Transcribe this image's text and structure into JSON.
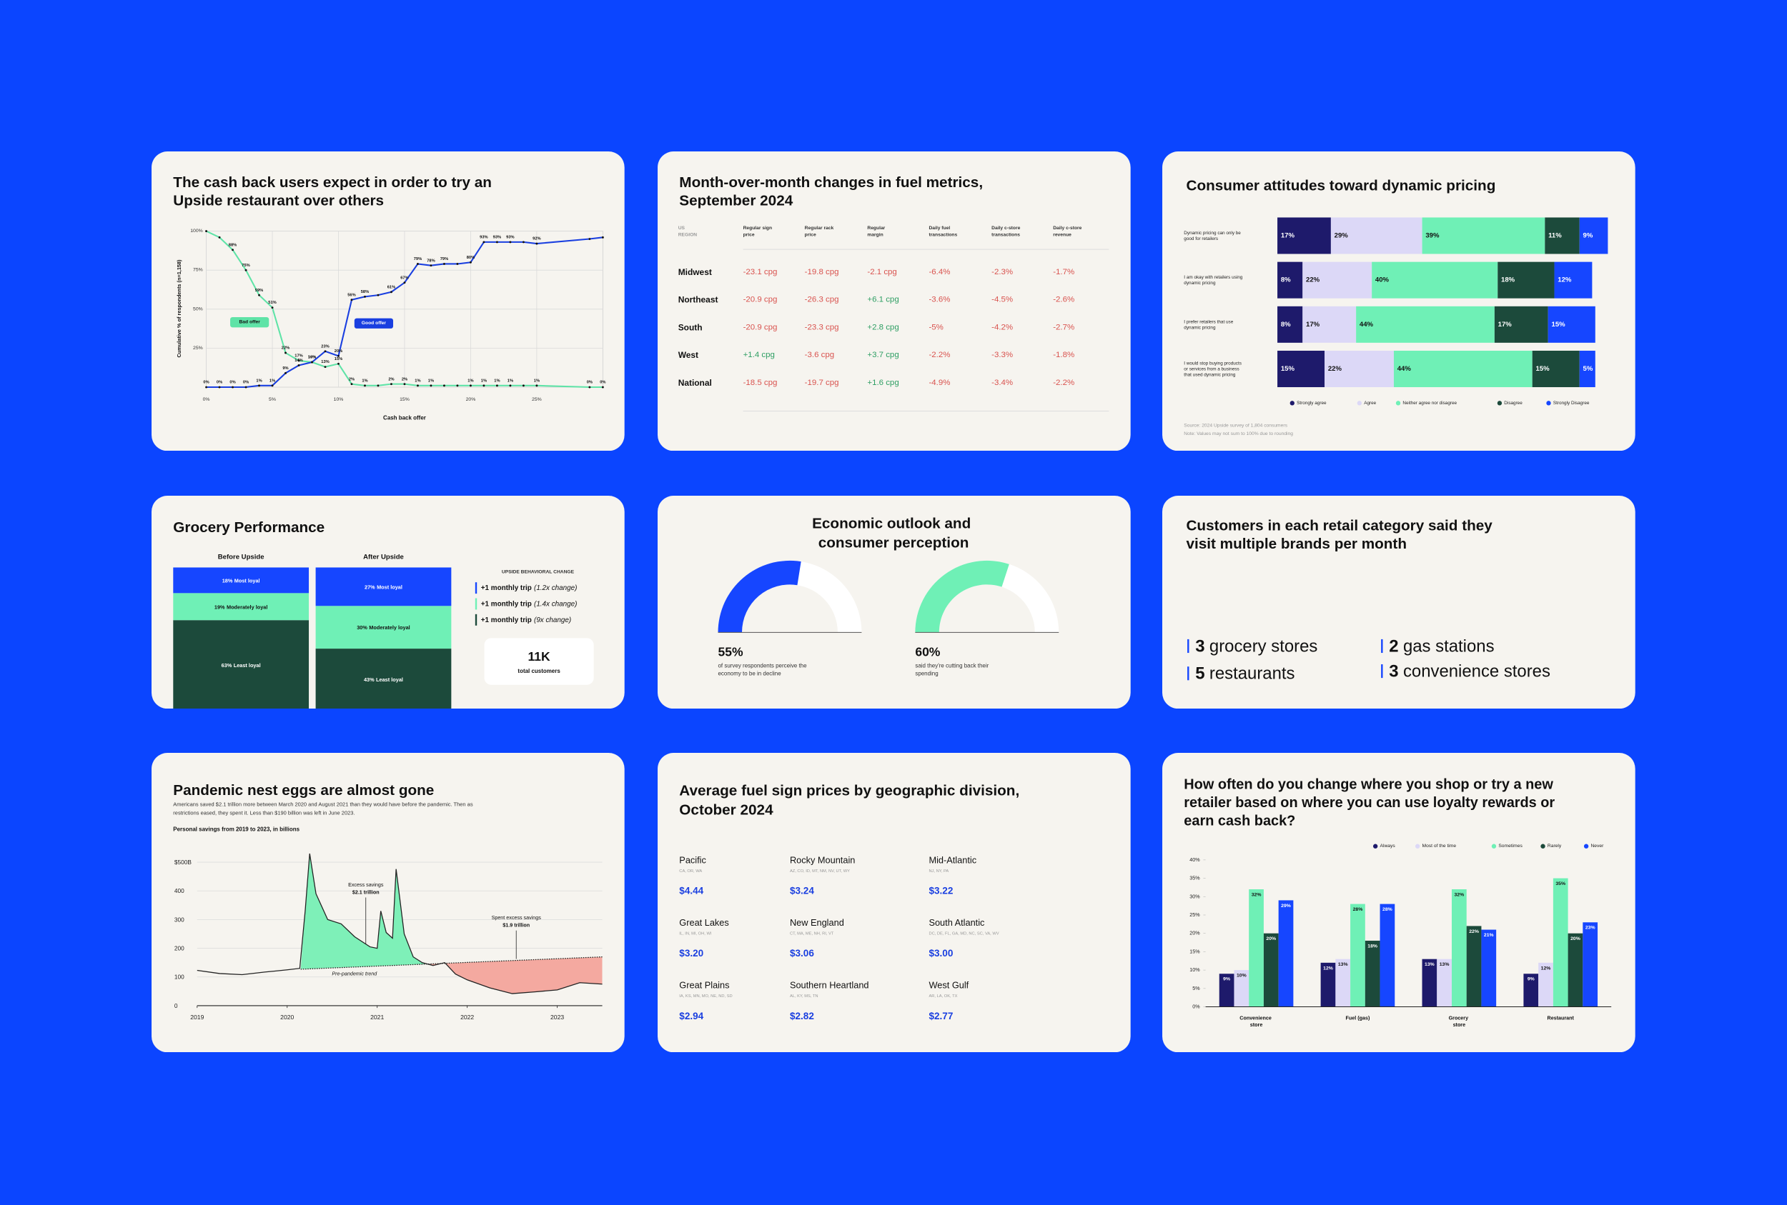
{
  "chart_data": [
    {
      "type": "line",
      "title": "The cash back users expect in order to try an Upside restaurant over others",
      "x_label": "Cash back offer",
      "y_label": "Cumulative % of respondents (n=1,158)",
      "x": [
        0,
        1,
        2,
        3,
        4,
        5,
        6,
        7,
        8,
        9,
        10,
        11,
        12,
        13,
        14,
        15,
        16,
        17,
        18,
        19,
        20,
        21,
        22,
        23,
        24,
        25,
        29,
        30
      ],
      "xlim": [
        0,
        30
      ],
      "xticks": [
        {
          "value": 0,
          "label": "0%"
        },
        {
          "value": 5,
          "label": "5%"
        },
        {
          "value": 10,
          "label": "10%"
        },
        {
          "value": 15,
          "label": "15%"
        },
        {
          "value": 20,
          "label": "20%"
        },
        {
          "value": 25,
          "label": "25%"
        }
      ],
      "ylim": [
        0,
        100
      ],
      "yticks": [
        {
          "value": 25,
          "label": "25%"
        },
        {
          "value": 50,
          "label": "50%"
        },
        {
          "value": 75,
          "label": "75%"
        },
        {
          "value": 100,
          "label": "100%"
        }
      ],
      "grid": true,
      "series": [
        {
          "name": "Bad offer",
          "color": "#5fe3a7",
          "values": [
            100,
            96,
            88,
            75,
            59,
            51,
            22,
            17,
            16,
            13,
            15,
            2,
            1,
            1,
            2,
            2,
            1,
            1,
            1,
            1,
            1,
            1,
            1,
            1,
            1,
            1,
            0,
            0
          ],
          "value_labels": [
            null,
            null,
            "88%",
            "75%",
            "59%",
            "51%",
            "22%",
            "17%",
            "16%",
            "13%",
            "15%",
            "2%",
            "1%",
            null,
            "2%",
            "2%",
            "1%",
            "1%",
            null,
            null,
            "1%",
            "1%",
            "1%",
            "1%",
            null,
            "1%",
            "0%",
            "0%"
          ]
        },
        {
          "name": "Good offer",
          "color": "#1a3fe0",
          "values": [
            0,
            0,
            0,
            0,
            1,
            1,
            9,
            14,
            16,
            23,
            20,
            56,
            58,
            59,
            61,
            67,
            79,
            78,
            79,
            79,
            80,
            93,
            93,
            93,
            93,
            92,
            95,
            96
          ],
          "value_labels": [
            "0%",
            "0%",
            "0%",
            "0%",
            "1%",
            "1%",
            "9%",
            "14%",
            "16%",
            "23%",
            "20%",
            "56%",
            "58%",
            null,
            "61%",
            "67%",
            "79%",
            "78%",
            "79%",
            null,
            "80%",
            "93%",
            "93%",
            "93%",
            null,
            "92%",
            null,
            null
          ]
        }
      ]
    },
    {
      "type": "table",
      "title": "Month-over-month changes in fuel metrics, September 2024",
      "columns": [
        "US REGION",
        "Regular sign price",
        "Regular rack price",
        "Regular margin",
        "Daily fuel transactions",
        "Daily c-store transactions",
        "Daily c-store revenue"
      ],
      "rows": [
        {
          "region": "Midwest",
          "values": [
            "-23.1 cpg",
            "-19.8 cpg",
            "-2.1 cpg",
            "-6.4%",
            "-2.3%",
            "-1.7%"
          ]
        },
        {
          "region": "Northeast",
          "values": [
            "-20.9 cpg",
            "-26.3 cpg",
            "+6.1 cpg",
            "-3.6%",
            "-4.5%",
            "-2.6%"
          ]
        },
        {
          "region": "South",
          "values": [
            "-20.9 cpg",
            "-23.3 cpg",
            "+2.8 cpg",
            "-5%",
            "-4.2%",
            "-2.7%"
          ]
        },
        {
          "region": "West",
          "values": [
            "+1.4 cpg",
            "-3.6 cpg",
            "+3.7 cpg",
            "-2.2%",
            "-3.3%",
            "-1.8%"
          ]
        },
        {
          "region": "National",
          "values": [
            "-18.5 cpg",
            "-19.7 cpg",
            "+1.6 cpg",
            "-4.9%",
            "-3.4%",
            "-2.2%"
          ]
        }
      ],
      "negative_color": "#d9534f",
      "positive_color": "#2e9e63"
    },
    {
      "type": "stacked_bar",
      "title": "Consumer attitudes toward dynamic pricing",
      "categories": [
        "Dynamic pricing can only be good for retailers",
        "I am okay with retailers using dynamic pricing",
        "I prefer retailers that use dynamic pricing",
        "I would stop buying products or services from a business that used dynamic pricing"
      ],
      "xlim": [
        0,
        105
      ],
      "series": [
        {
          "name": "Strongly agree",
          "color": "#1e1a6b",
          "values": [
            17,
            8,
            8,
            15
          ],
          "value_labels": [
            "17%",
            "8%",
            "8%",
            "15%"
          ]
        },
        {
          "name": "Agree",
          "color": "#dcd8f7",
          "values": [
            29,
            22,
            17,
            22
          ],
          "value_labels": [
            "29%",
            "22%",
            "17%",
            "22%"
          ]
        },
        {
          "name": "Neither agree nor disagree",
          "color": "#6ff0b6",
          "values": [
            39,
            40,
            44,
            44
          ],
          "value_labels": [
            "39%",
            "40%",
            "44%",
            "44%"
          ]
        },
        {
          "name": "Disagree",
          "color": "#1c4a3b",
          "values": [
            11,
            18,
            17,
            15
          ],
          "value_labels": [
            "11%",
            "18%",
            "17%",
            "15%"
          ]
        },
        {
          "name": "Strongly Disagree",
          "color": "#1646ff",
          "values": [
            9,
            12,
            15,
            5
          ],
          "value_labels": [
            "9%",
            "12%",
            "15%",
            "5%"
          ]
        }
      ],
      "notes": [
        "Source: 2024 Upside survey of 1,804 consumers",
        "Note: Values may not sum to 100% due to rounding"
      ]
    },
    {
      "type": "stacked_column",
      "title": "Grocery Performance",
      "categories": [
        "Before Upside",
        "After Upside"
      ],
      "ylim": [
        0,
        100
      ],
      "series": [
        {
          "name": "Least loyal",
          "color": "#1c4a3b",
          "values": [
            63,
            43
          ],
          "value_labels": [
            "63%",
            "43%"
          ]
        },
        {
          "name": "Moderately loyal",
          "color": "#6ff0b6",
          "values": [
            19,
            30
          ],
          "value_labels": [
            "19%",
            "30%"
          ]
        },
        {
          "name": "Most loyal",
          "color": "#1646ff",
          "values": [
            18,
            27
          ],
          "value_labels": [
            "18%",
            "27%"
          ]
        }
      ],
      "panel_title": "UPSIDE BEHAVIORAL CHANGE",
      "changes": [
        {
          "label": "+1 monthly trip",
          "note": "(1.2x change)",
          "color": "#1646ff"
        },
        {
          "label": "+1 monthly trip",
          "note": "(1.4x change)",
          "color": "#6ff0b6"
        },
        {
          "label": "+1 monthly trip",
          "note": "(9x change)",
          "color": "#1c4a3b"
        }
      ],
      "total": "11K",
      "total_caption": "total customers"
    },
    {
      "type": "gauge",
      "title": "Economic outlook and consumer perception",
      "ylim": [
        0,
        100
      ],
      "items": [
        {
          "value": 55,
          "value_label": "55%",
          "caption": "of survey respondents perceive the economy to be in decline",
          "color": "#1646ff"
        },
        {
          "value": 60,
          "value_label": "60%",
          "caption": "said they're cutting back their spending",
          "color": "#6ff0b6"
        }
      ]
    },
    {
      "type": "stat_list",
      "title": "Customers in each retail category said they visit multiple brands per month",
      "color": "#1646ff",
      "items": [
        {
          "value": 3,
          "label": "grocery stores"
        },
        {
          "value": 2,
          "label": "gas stations"
        },
        {
          "value": 5,
          "label": "restaurants"
        },
        {
          "value": 3,
          "label": "convenience stores"
        }
      ]
    },
    {
      "type": "area",
      "title": "Pandemic nest eggs are almost gone",
      "subtitle": "Americans saved $2.1 trillion more between March 2020 and August 2021 than they would have before the pandemic. Then as restrictions eased, they spent it. Less than $190 billion was left in June 2023.",
      "chart_title": "Personal savings from 2019 to 2023, in billions",
      "xlim": [
        2019,
        2023.5
      ],
      "xticks": [
        2019,
        2020,
        2021,
        2022,
        2023
      ],
      "ylim": [
        0,
        500
      ],
      "yticks": [
        0,
        100,
        200,
        300,
        400,
        {
          "value": 500,
          "label": "$500B"
        }
      ],
      "grid": true,
      "above_color": "#7ef0b8",
      "below_color": "#f4a9a0",
      "series": [
        {
          "color": "#222222",
          "x": [
            2019,
            2019.25,
            2019.5,
            2019.75,
            2020,
            2020.14,
            2020.2,
            2020.25,
            2020.32,
            2020.45,
            2020.6,
            2020.75,
            2020.92,
            2021,
            2021.04,
            2021.1,
            2021.17,
            2021.21,
            2021.3,
            2021.4,
            2021.5,
            2021.62,
            2021.75,
            2021.87,
            2022,
            2022.25,
            2022.5,
            2022.75,
            2023,
            2023.25,
            2023.5
          ],
          "values": [
            123,
            112,
            108,
            117,
            125,
            130,
            330,
            530,
            390,
            300,
            285,
            240,
            205,
            200,
            330,
            255,
            235,
            476,
            250,
            170,
            150,
            140,
            150,
            110,
            90,
            62,
            42,
            48,
            55,
            80,
            75
          ]
        },
        {
          "name": "Pre-pandemic trend",
          "color": "#222222",
          "x": [
            2020.15,
            2023.5
          ],
          "values": [
            127,
            170
          ]
        }
      ],
      "annotations": [
        {
          "title": "Excess savings",
          "value": "$2.1 trillion"
        },
        {
          "title": "Spent excess savings",
          "value": "$1.9 trillion"
        }
      ]
    },
    {
      "type": "price_grid",
      "title": "Average fuel sign prices by geographic division, October 2024",
      "color": "#1a3fe0",
      "items": [
        {
          "name": "Pacific",
          "states": "CA, OR, WA",
          "price": "$4.44"
        },
        {
          "name": "Rocky Mountain",
          "states": "AZ, CO, ID, MT, NM, NV, UT, WY",
          "price": "$3.24"
        },
        {
          "name": "Mid-Atlantic",
          "states": "NJ, NY, PA",
          "price": "$3.22"
        },
        {
          "name": "Great Lakes",
          "states": "IL, IN, MI, OH, WI",
          "price": "$3.20"
        },
        {
          "name": "New England",
          "states": "CT, MA, ME, NH, RI, VT",
          "price": "$3.06"
        },
        {
          "name": "South Atlantic",
          "states": "DC, DE, FL, GA, MD, NC, SC, VA, WV",
          "price": "$3.00"
        },
        {
          "name": "Great Plains",
          "states": "IA, KS, MN, MO, NE, ND, SD",
          "price": "$2.94"
        },
        {
          "name": "Southern Heartland",
          "states": "AL, KY, MS, TN",
          "price": "$2.82"
        },
        {
          "name": "West Gulf",
          "states": "AR, LA, OK, TX",
          "price": "$2.77"
        }
      ]
    },
    {
      "type": "grouped_bar",
      "title": "How often do you change where you shop or try a new retailer based on where you can use loyalty rewards or earn cash back?",
      "categories": [
        "Convenience store",
        "Fuel (gas)",
        "Grocery store",
        "Restaurant"
      ],
      "ylim": [
        0,
        40
      ],
      "yticks": [
        {
          "value": 0,
          "label": "0%"
        },
        {
          "value": 5,
          "label": "5%"
        },
        {
          "value": 10,
          "label": "10%"
        },
        {
          "value": 15,
          "label": "15%"
        },
        {
          "value": 20,
          "label": "20%"
        },
        {
          "value": 25,
          "label": "25%"
        },
        {
          "value": 30,
          "label": "30%"
        },
        {
          "value": 35,
          "label": "35%"
        },
        {
          "value": 40,
          "label": "40%"
        }
      ],
      "grid": false,
      "series": [
        {
          "name": "Always",
          "color": "#1e1a6b",
          "values": [
            9,
            12,
            13,
            9
          ],
          "value_labels": [
            "9%",
            "12%",
            "13%",
            "9%"
          ]
        },
        {
          "name": "Most of the time",
          "color": "#dcd8f7",
          "values": [
            10,
            13,
            13,
            12
          ],
          "value_labels": [
            "10%",
            "13%",
            "13%",
            "12%"
          ]
        },
        {
          "name": "Sometimes",
          "color": "#6ff0b6",
          "values": [
            32,
            28,
            32,
            35
          ],
          "value_labels": [
            "32%",
            "28%",
            "32%",
            "35%"
          ]
        },
        {
          "name": "Rarely",
          "color": "#1c4a3b",
          "values": [
            20,
            18,
            22,
            20
          ],
          "value_labels": [
            "20%",
            "18%",
            "22%",
            "20%"
          ]
        },
        {
          "name": "Never",
          "color": "#1646ff",
          "values": [
            29,
            28,
            21,
            23
          ],
          "value_labels": [
            "29%",
            "28%",
            "21%",
            "23%"
          ]
        }
      ]
    }
  ]
}
